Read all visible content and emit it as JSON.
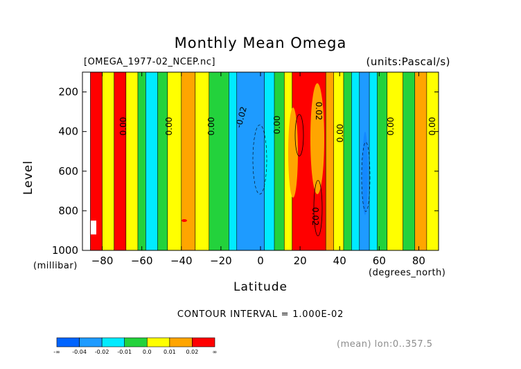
{
  "chart_data": {
    "type": "heatmap",
    "title": "Monthly Mean Omega",
    "file_label": "[OMEGA_1977-02_NCEP.nc]",
    "units_label": "(units:Pascal/s)",
    "xlabel": "Latitude",
    "ylabel": "Level",
    "x_unit_label": "(degrees_north)",
    "y_unit_label": "(millibar)",
    "xlim": [
      -90,
      90
    ],
    "ylim": [
      1000,
      100
    ],
    "x_ticks": [
      -80,
      -60,
      -40,
      -20,
      0,
      20,
      40,
      60,
      80
    ],
    "y_ticks": [
      1000,
      800,
      600,
      400,
      200
    ],
    "contour_interval": "CONTOUR INTERVAL = 1.000E-02",
    "annotation": "(mean) lon:0..357.5",
    "contour_labels": [
      "0.00",
      "0.00",
      "0.00",
      "-0.02",
      "0.00",
      "0.02",
      "0.00",
      "0.00",
      "0.00",
      "0.02"
    ],
    "colorbar": {
      "colors": [
        "#0064ff",
        "#1e9bff",
        "#00ebff",
        "#23d23c",
        "#ffff00",
        "#ffa500",
        "#ff0000"
      ],
      "labels": [
        "-∞",
        "-0.04",
        "-0.02",
        "-0.01",
        "0.0",
        "0.01",
        "0.02",
        "∞"
      ]
    },
    "bands": [
      {
        "x0": -90,
        "x1": -86,
        "color": "#ffffff"
      },
      {
        "x0": -86,
        "x1": -80,
        "color": "#ff0000"
      },
      {
        "x0": -80,
        "x1": -74,
        "color": "#ffff00"
      },
      {
        "x0": -74,
        "x1": -68,
        "color": "#ff0000"
      },
      {
        "x0": -68,
        "x1": -62,
        "color": "#ffff00"
      },
      {
        "x0": -62,
        "x1": -58,
        "color": "#23d23c"
      },
      {
        "x0": -58,
        "x1": -52,
        "color": "#00ebff"
      },
      {
        "x0": -52,
        "x1": -47,
        "color": "#23d23c"
      },
      {
        "x0": -47,
        "x1": -40,
        "color": "#ffff00"
      },
      {
        "x0": -40,
        "x1": -33,
        "color": "#ffa500"
      },
      {
        "x0": -33,
        "x1": -26,
        "color": "#ffff00"
      },
      {
        "x0": -26,
        "x1": -16,
        "color": "#23d23c"
      },
      {
        "x0": -16,
        "x1": -12,
        "color": "#00ebff"
      },
      {
        "x0": -12,
        "x1": 2,
        "color": "#1e9bff"
      },
      {
        "x0": 2,
        "x1": 7,
        "color": "#00ebff"
      },
      {
        "x0": 7,
        "x1": 12,
        "color": "#23d23c"
      },
      {
        "x0": 12,
        "x1": 16,
        "color": "#ffff00"
      },
      {
        "x0": 16,
        "x1": 33,
        "color": "#ff0000"
      },
      {
        "x0": 33,
        "x1": 37,
        "color": "#ffa500"
      },
      {
        "x0": 37,
        "x1": 42,
        "color": "#ffff00"
      },
      {
        "x0": 42,
        "x1": 46,
        "color": "#23d23c"
      },
      {
        "x0": 46,
        "x1": 50,
        "color": "#00ebff"
      },
      {
        "x0": 50,
        "x1": 55,
        "color": "#1e9bff"
      },
      {
        "x0": 55,
        "x1": 59,
        "color": "#00ebff"
      },
      {
        "x0": 59,
        "x1": 64,
        "color": "#23d23c"
      },
      {
        "x0": 64,
        "x1": 72,
        "color": "#ffff00"
      },
      {
        "x0": 72,
        "x1": 78,
        "color": "#23d23c"
      },
      {
        "x0": 78,
        "x1": 84,
        "color": "#ffa500"
      },
      {
        "x0": 84,
        "x1": 90,
        "color": "#ffff00"
      }
    ]
  }
}
